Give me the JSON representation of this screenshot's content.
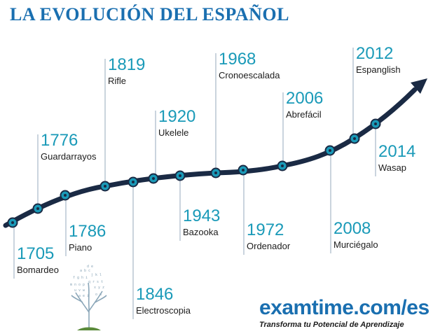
{
  "title": "LA EVOLUCIÓN DEL ESPAÑOL",
  "colors": {
    "title": "#1a6fb0",
    "year": "#1a9ab8",
    "line": "#1a2a44",
    "node": "#1a9ab8",
    "connector": "#b8c6d2",
    "brand": "#1a6fb0"
  },
  "events": [
    {
      "year": "1705",
      "term": "Bomardeo"
    },
    {
      "year": "1776",
      "term": "Guardarrayos"
    },
    {
      "year": "1786",
      "term": "Piano"
    },
    {
      "year": "1819",
      "term": "Rifle"
    },
    {
      "year": "1846",
      "term": "Electroscopia"
    },
    {
      "year": "1920",
      "term": "Ukelele"
    },
    {
      "year": "1943",
      "term": "Bazooka"
    },
    {
      "year": "1968",
      "term": "Cronoescalada"
    },
    {
      "year": "1972",
      "term": "Ordenador"
    },
    {
      "year": "2006",
      "term": "Abrefácil"
    },
    {
      "year": "2008",
      "term": "Murciégalo"
    },
    {
      "year": "2012",
      "term": "Espanglish"
    },
    {
      "year": "2014",
      "term": "Wasap"
    }
  ],
  "brand": {
    "name": "examtime.com/es",
    "tagline": "Transforma tu Potencial de Aprendizaje",
    "logo_icon": "tree-icon"
  }
}
